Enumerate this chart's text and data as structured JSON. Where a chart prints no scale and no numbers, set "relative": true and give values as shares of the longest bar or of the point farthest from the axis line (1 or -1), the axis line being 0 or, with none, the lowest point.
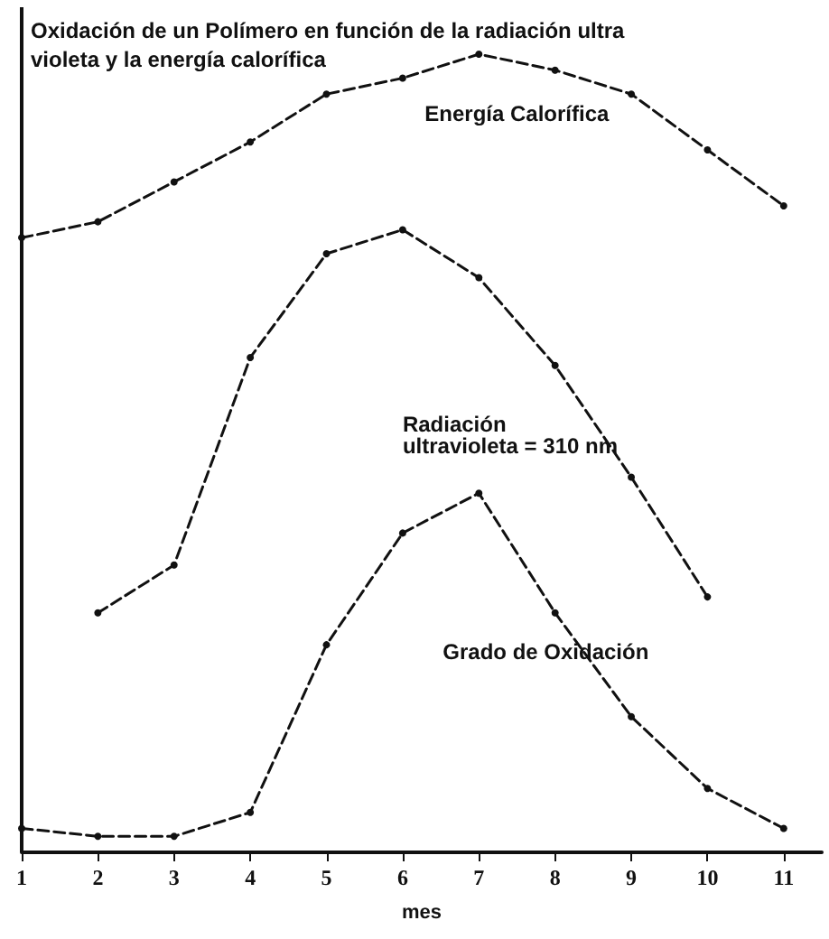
{
  "chart_data": {
    "type": "line",
    "title": "Oxidación de un Polímero en función de la radiación ultra\nvioleta y la energía calorífica",
    "xlabel": "mes",
    "x": [
      1,
      2,
      3,
      4,
      5,
      6,
      7,
      8,
      9,
      10,
      11
    ],
    "xlim": [
      1,
      11.5
    ],
    "xticks": [
      1,
      2,
      3,
      4,
      5,
      6,
      7,
      8,
      9,
      10,
      11
    ],
    "relative": true,
    "grid": false,
    "legend": false,
    "marker": "circle",
    "line_style": "dashed",
    "series": [
      {
        "name": "Energía Calorífica",
        "color": "#111111",
        "values": [
          0.77,
          0.79,
          0.84,
          0.89,
          0.95,
          0.97,
          1.0,
          0.98,
          0.95,
          0.88,
          0.81
        ]
      },
      {
        "name": "Radiación\nultravioleta = 310 nm",
        "color": "#111111",
        "values": [
          null,
          0.3,
          0.36,
          0.62,
          0.75,
          0.78,
          0.72,
          0.61,
          0.47,
          0.32,
          null
        ]
      },
      {
        "name": "Grado de Oxidación",
        "color": "#111111",
        "values": [
          0.03,
          0.02,
          0.02,
          0.05,
          0.26,
          0.4,
          0.45,
          0.3,
          0.17,
          0.08,
          0.03
        ]
      }
    ]
  }
}
